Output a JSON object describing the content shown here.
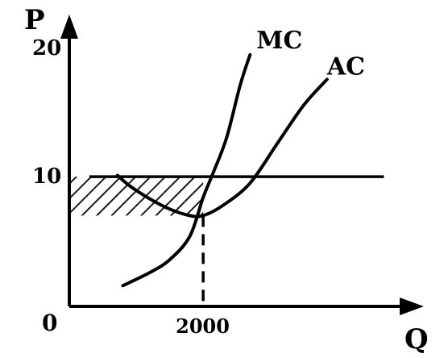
{
  "chart_data": {
    "type": "line",
    "xlabel": "Q",
    "ylabel": "P",
    "origin_label": "0",
    "x_ticks": [
      {
        "value": 2000,
        "label": "2000"
      }
    ],
    "y_ticks": [
      {
        "value": 10,
        "label": "10"
      },
      {
        "value": 20,
        "label": "20"
      }
    ],
    "xlim": [
      0,
      5200
    ],
    "ylim": [
      0,
      22.5
    ],
    "price_line": {
      "y": 10,
      "x_range": [
        300,
        4700
      ]
    },
    "series": [
      {
        "name": "MC",
        "x": [
          800,
          1200,
          1500,
          1800,
          2000,
          2150,
          2350,
          2550,
          2700
        ],
        "y": [
          1.6,
          2.6,
          3.6,
          5.4,
          8.4,
          10.3,
          13.0,
          17.0,
          19.4
        ]
      },
      {
        "name": "AC",
        "x": [
          720,
          900,
          1200,
          1500,
          1800,
          2000,
          2300,
          2700,
          3100,
          3500,
          3850
        ],
        "y": [
          10.1,
          9.3,
          8.3,
          7.5,
          7.0,
          7.0,
          7.8,
          9.5,
          12.5,
          15.5,
          17.5
        ]
      }
    ],
    "shaded_region": {
      "x_range": [
        0,
        2000
      ],
      "y_range": [
        7.0,
        10
      ],
      "pattern": "hatched"
    },
    "dashed_guide": {
      "x": 2000,
      "y_from": 0,
      "y_to": 7.0
    },
    "grid": false,
    "legend": "none"
  },
  "colors": {
    "ink": "#000000",
    "background": "#ffffff"
  }
}
